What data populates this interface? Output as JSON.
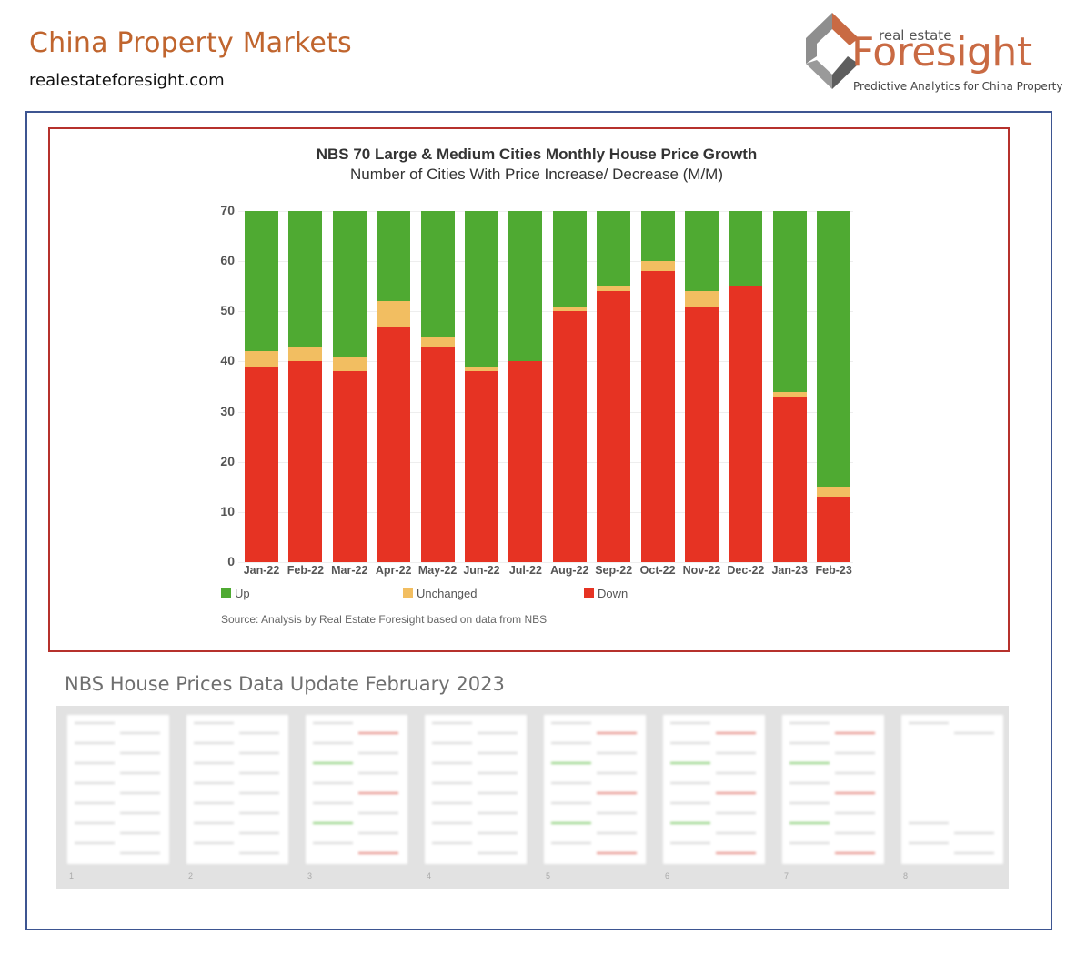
{
  "header": {
    "title": "China Property Markets",
    "url": "realestateforesight.com"
  },
  "logo": {
    "small_text": "real estate",
    "brand": "Foresight",
    "tagline": "Predictive Analytics for China Property"
  },
  "colors": {
    "title_orange": "#c0652e",
    "outer_frame": "#3d5591",
    "chart_frame": "#b6312c",
    "up": "#4faa32",
    "unchanged": "#f2be61",
    "down": "#e63323"
  },
  "chart": {
    "title": "NBS 70 Large & Medium Cities Monthly House Price Growth",
    "subtitle": "Number of Cities With Price Increase/ Decrease (M/M)",
    "yticks": [
      "0",
      "10",
      "20",
      "30",
      "40",
      "50",
      "60",
      "70"
    ],
    "legend": {
      "up": "Up",
      "unchanged": "Unchanged",
      "down": "Down"
    },
    "source": "Source: Analysis by Real Estate Foresight based on data from NBS",
    "months": [
      "Jan-22",
      "Feb-22",
      "Mar-22",
      "Apr-22",
      "May-22",
      "Jun-22",
      "Jul-22",
      "Aug-22",
      "Sep-22",
      "Oct-22",
      "Nov-22",
      "Dec-22",
      "Jan-23",
      "Feb-23"
    ]
  },
  "chart_data": {
    "type": "bar",
    "stacked": true,
    "title": "NBS 70 Large & Medium Cities Monthly House Price Growth",
    "subtitle": "Number of Cities With Price Increase/ Decrease (M/M)",
    "xlabel": "",
    "ylabel": "",
    "ylim": [
      0,
      70
    ],
    "yticks": [
      0,
      10,
      20,
      30,
      40,
      50,
      60,
      70
    ],
    "grid": true,
    "legend_position": "bottom",
    "categories": [
      "Jan-22",
      "Feb-22",
      "Mar-22",
      "Apr-22",
      "May-22",
      "Jun-22",
      "Jul-22",
      "Aug-22",
      "Sep-22",
      "Oct-22",
      "Nov-22",
      "Dec-22",
      "Jan-23",
      "Feb-23"
    ],
    "series": [
      {
        "name": "Down",
        "color": "#e63323",
        "values": [
          39,
          40,
          38,
          47,
          43,
          38,
          40,
          50,
          54,
          58,
          51,
          55,
          33,
          13
        ]
      },
      {
        "name": "Unchanged",
        "color": "#f2be61",
        "values": [
          3,
          3,
          3,
          5,
          2,
          1,
          0,
          1,
          1,
          2,
          3,
          0,
          1,
          2
        ]
      },
      {
        "name": "Up",
        "color": "#4faa32",
        "values": [
          28,
          27,
          29,
          18,
          25,
          31,
          30,
          19,
          15,
          10,
          16,
          15,
          36,
          55
        ]
      }
    ],
    "source": "Source: Analysis by Real Estate Foresight based on data from NBS"
  },
  "report": {
    "title": "NBS House Prices Data Update February 2023",
    "pages": [
      "1",
      "2",
      "3",
      "4",
      "5",
      "6",
      "7",
      "8"
    ]
  }
}
